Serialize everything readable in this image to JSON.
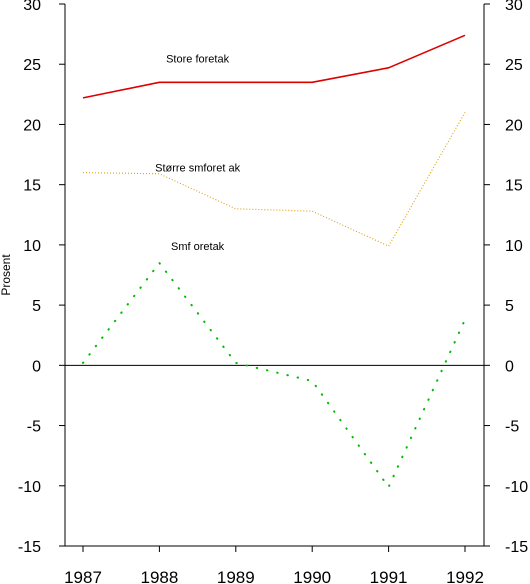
{
  "chart_data": {
    "type": "line",
    "title": "",
    "xlabel": "",
    "ylabel": "Prosent",
    "x": [
      "1987",
      "1988",
      "1989",
      "1990",
      "1991",
      "1992"
    ],
    "ylim": [
      -15,
      30
    ],
    "yticks": [
      30,
      25,
      20,
      15,
      10,
      5,
      0,
      -5,
      -10,
      -15
    ],
    "grid": false,
    "legend": "none",
    "zero_line": true,
    "series": [
      {
        "name": "Store foretak",
        "values": [
          22.2,
          23.5,
          23.5,
          23.5,
          24.7,
          27.4
        ],
        "color": "#dd0000",
        "style": "solid"
      },
      {
        "name": "Større smforet ak",
        "values": [
          16.0,
          15.9,
          13.0,
          12.8,
          9.9,
          21.0
        ],
        "color": "#e0a000",
        "style": "dotted"
      },
      {
        "name": "Smf oretak",
        "values": [
          0.2,
          8.5,
          0.2,
          -1.3,
          -10.1,
          3.8
        ],
        "color": "#00bb00",
        "style": "sparse-dotted"
      }
    ]
  }
}
